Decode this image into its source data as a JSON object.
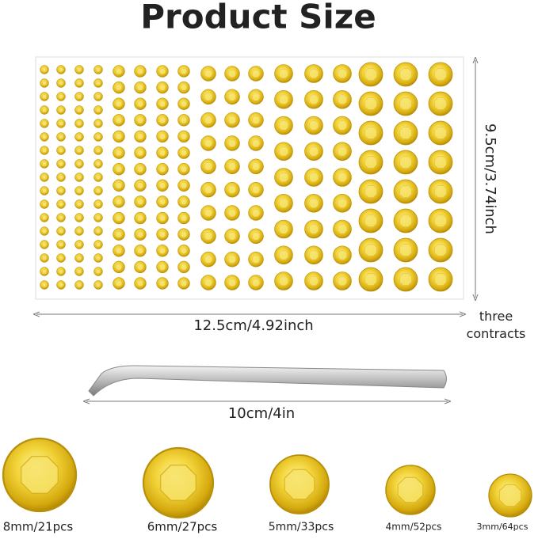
{
  "header": {
    "title": "Product Size"
  },
  "sheet": {
    "height_label": "9.5cm/3.74inch",
    "width_label": "12.5cm/4.92inch",
    "note": "three contracts"
  },
  "tweezers": {
    "length_label": "10cm/4in"
  },
  "sizes": [
    "8mm/21pcs",
    "6mm/27pcs",
    "5mm/33pcs",
    "4mm/52pcs",
    "3mm/64pcs"
  ]
}
